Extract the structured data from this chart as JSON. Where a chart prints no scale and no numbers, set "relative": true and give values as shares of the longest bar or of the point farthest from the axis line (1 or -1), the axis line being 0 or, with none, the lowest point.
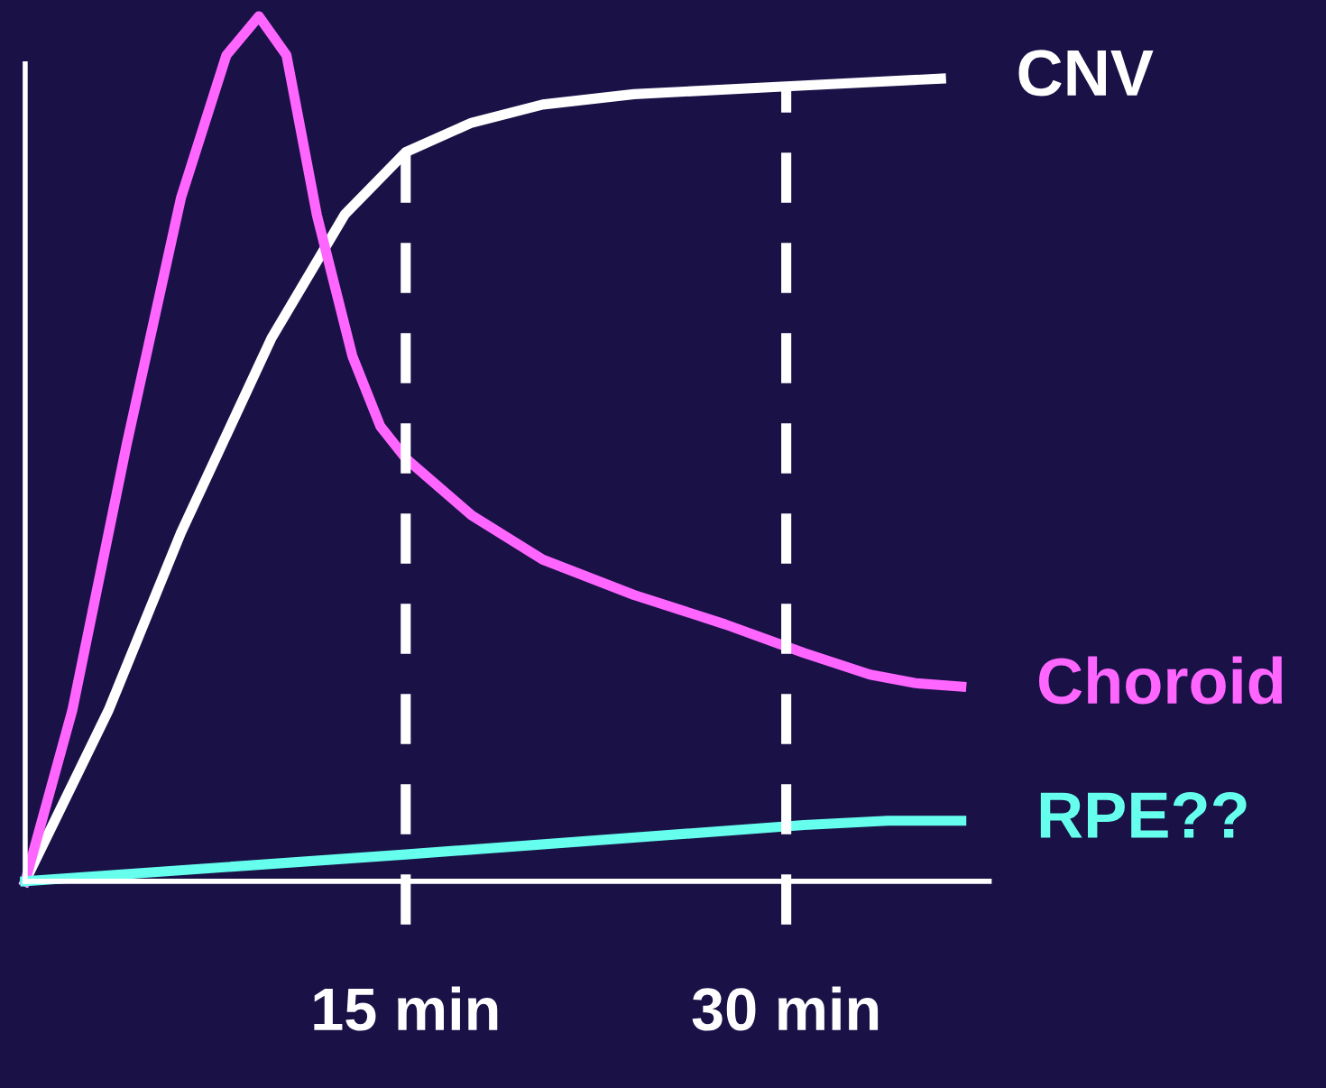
{
  "chart_data": {
    "type": "line",
    "relative": true,
    "xlim": [
      0,
      38
    ],
    "xticks": [
      {
        "value": 15,
        "label": "15 min"
      },
      {
        "value": 30,
        "label": "30 min"
      }
    ],
    "series": [
      {
        "name": "CNV",
        "color": "#ffffff",
        "x": [
          0,
          3.29,
          6.14,
          9.71,
          12.6,
          15,
          17.6,
          20.4,
          24,
          30.7,
          36.1
        ],
        "values": [
          0,
          0.198,
          0.403,
          0.628,
          0.771,
          0.843,
          0.877,
          0.898,
          0.91,
          0.92,
          0.928
        ]
      },
      {
        "name": "Choroid",
        "color": "#ff66ff",
        "x": [
          0,
          1.86,
          4,
          6.14,
          7.93,
          9.21,
          10.3,
          11.5,
          12.9,
          14,
          15,
          17.6,
          20.4,
          24,
          27.6,
          30.7,
          33.3,
          35.1,
          36.9
        ],
        "values": [
          0,
          0.198,
          0.505,
          0.79,
          0.955,
          1,
          0.955,
          0.77,
          0.607,
          0.526,
          0.489,
          0.423,
          0.372,
          0.331,
          0.297,
          0.264,
          0.239,
          0.229,
          0.225
        ]
      },
      {
        "name": "RPE??",
        "color": "#66ffee",
        "x": [
          0,
          15,
          30.7,
          34,
          36.9
        ],
        "values": [
          0,
          0.031,
          0.065,
          0.07,
          0.07
        ]
      }
    ],
    "ref_lines": [
      {
        "axis": "x",
        "value": 15,
        "color": "#ffffff",
        "line_style": "dashed"
      },
      {
        "axis": "x",
        "value": 30,
        "color": "#ffffff",
        "line_style": "dashed"
      }
    ],
    "grid": false,
    "legend": false,
    "marker": "none",
    "line_style": "solid"
  }
}
